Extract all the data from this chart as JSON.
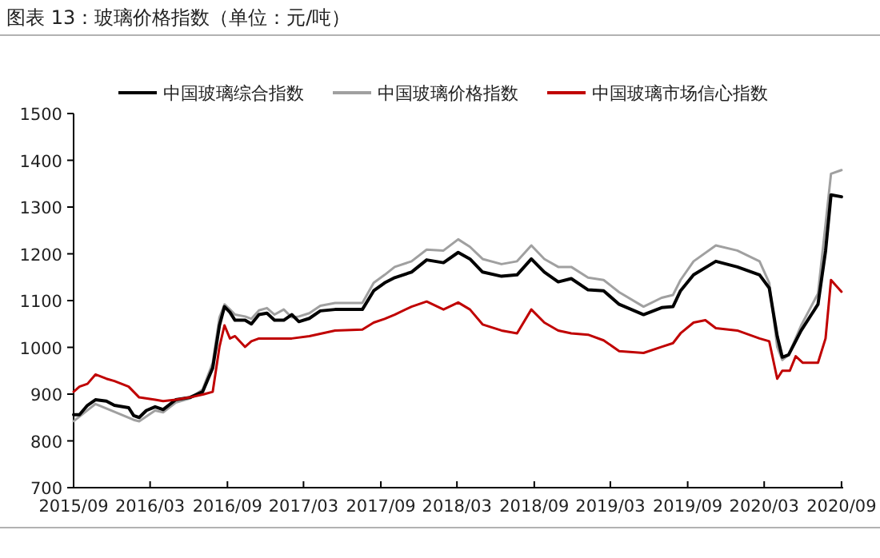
{
  "chart_data": {
    "type": "line",
    "title": "图表 13：玻璃价格指数（单位：元/吨）",
    "legend": "top",
    "xlim": [
      "2015-09-01",
      "2020-09-05"
    ],
    "ylim": [
      700,
      1500
    ],
    "xticks": [
      {
        "value": "2015-09",
        "label": "2015/09"
      },
      {
        "value": "2016-03",
        "label": "2016/03"
      },
      {
        "value": "2016-09",
        "label": "2016/09"
      },
      {
        "value": "2017-03",
        "label": "2017/03"
      },
      {
        "value": "2017-09",
        "label": "2017/09"
      },
      {
        "value": "2018-03",
        "label": "2018/03"
      },
      {
        "value": "2018-09",
        "label": "2018/09"
      },
      {
        "value": "2019-03",
        "label": "2019/03"
      },
      {
        "value": "2019-09",
        "label": "2019/09"
      },
      {
        "value": "2020-03",
        "label": "2020/03"
      },
      {
        "value": "2020-09",
        "label": "2020/09"
      }
    ],
    "yticks": [
      700,
      800,
      900,
      1000,
      1100,
      1200,
      1300,
      1400,
      1500
    ],
    "series": [
      {
        "name": "中国玻璃综合指数",
        "color": "#000000",
        "x": [
          "2015-09-01",
          "2015-09-15",
          "2015-10-04",
          "2015-10-23",
          "2015-11-18",
          "2015-12-07",
          "2016-01-10",
          "2016-01-22",
          "2016-02-04",
          "2016-02-21",
          "2016-03-13",
          "2016-04-01",
          "2016-05-01",
          "2016-06-04",
          "2016-07-04",
          "2016-07-28",
          "2016-08-13",
          "2016-08-25",
          "2016-09-07",
          "2016-09-19",
          "2016-10-13",
          "2016-10-28",
          "2016-11-15",
          "2016-12-04",
          "2016-12-22",
          "2017-01-13",
          "2017-02-01",
          "2017-02-18",
          "2017-03-15",
          "2017-04-10",
          "2017-05-15",
          "2017-06-25",
          "2017-07-19",
          "2017-08-15",
          "2017-09-10",
          "2017-10-04",
          "2017-11-13",
          "2017-12-19",
          "2018-01-28",
          "2018-03-04",
          "2018-04-01",
          "2018-05-01",
          "2018-06-15",
          "2018-07-22",
          "2018-08-25",
          "2018-09-25",
          "2018-10-28",
          "2018-11-28",
          "2019-01-07",
          "2019-02-13",
          "2019-03-22",
          "2019-05-19",
          "2019-07-01",
          "2019-07-28",
          "2019-08-15",
          "2019-09-15",
          "2019-11-07",
          "2019-12-28",
          "2020-02-19",
          "2020-03-13",
          "2020-04-01",
          "2020-04-13",
          "2020-04-28",
          "2020-05-28",
          "2020-07-07",
          "2020-07-25",
          "2020-08-07",
          "2020-09-01"
        ],
        "values": [
          856,
          856,
          876,
          888,
          885,
          876,
          871,
          854,
          850,
          865,
          873,
          867,
          888,
          893,
          905,
          956,
          1047,
          1087,
          1075,
          1058,
          1058,
          1050,
          1070,
          1073,
          1058,
          1058,
          1070,
          1055,
          1062,
          1078,
          1081,
          1081,
          1081,
          1121,
          1138,
          1149,
          1161,
          1187,
          1181,
          1203,
          1189,
          1161,
          1152,
          1155,
          1189,
          1161,
          1140,
          1147,
          1123,
          1121,
          1092,
          1070,
          1085,
          1087,
          1121,
          1155,
          1184,
          1172,
          1155,
          1127,
          1024,
          979,
          984,
          1036,
          1092,
          1206,
          1326,
          1322
        ]
      },
      {
        "name": "中国玻璃价格指数",
        "color": "#a0a0a0",
        "x": [
          "2015-09-01",
          "2015-10-23",
          "2016-01-22",
          "2016-02-04",
          "2016-03-13",
          "2016-04-01",
          "2016-05-01",
          "2016-06-04",
          "2016-07-04",
          "2016-07-28",
          "2016-08-13",
          "2016-08-25",
          "2016-09-07",
          "2016-09-19",
          "2016-10-13",
          "2016-10-28",
          "2016-11-15",
          "2016-12-04",
          "2016-12-22",
          "2017-01-13",
          "2017-02-01",
          "2017-02-18",
          "2017-03-15",
          "2017-04-10",
          "2017-05-15",
          "2017-06-25",
          "2017-07-19",
          "2017-08-15",
          "2017-09-10",
          "2017-10-04",
          "2017-11-13",
          "2017-12-19",
          "2018-01-28",
          "2018-03-04",
          "2018-04-01",
          "2018-05-01",
          "2018-06-15",
          "2018-07-22",
          "2018-08-25",
          "2018-09-25",
          "2018-10-28",
          "2018-11-28",
          "2019-01-07",
          "2019-02-13",
          "2019-03-22",
          "2019-05-19",
          "2019-07-01",
          "2019-07-28",
          "2019-08-15",
          "2019-09-15",
          "2019-11-07",
          "2019-12-28",
          "2020-02-19",
          "2020-03-13",
          "2020-04-01",
          "2020-04-13",
          "2020-04-28",
          "2020-05-28",
          "2020-07-07",
          "2020-07-25",
          "2020-08-07",
          "2020-09-01"
        ],
        "values": [
          842,
          879,
          845,
          842,
          865,
          861,
          882,
          891,
          910,
          967,
          1064,
          1092,
          1081,
          1070,
          1066,
          1061,
          1079,
          1084,
          1070,
          1081,
          1064,
          1066,
          1073,
          1089,
          1095,
          1095,
          1095,
          1138,
          1155,
          1172,
          1184,
          1209,
          1207,
          1231,
          1215,
          1189,
          1178,
          1184,
          1218,
          1189,
          1172,
          1172,
          1149,
          1144,
          1118,
          1087,
          1106,
          1112,
          1144,
          1184,
          1218,
          1207,
          1184,
          1138,
          1001,
          973,
          984,
          1047,
          1115,
          1263,
          1371,
          1379
        ]
      },
      {
        "name": "中国玻璃市场信心指数",
        "color": "#c00000",
        "x": [
          "2015-09-01",
          "2015-09-15",
          "2015-10-04",
          "2015-10-23",
          "2015-11-18",
          "2015-12-07",
          "2016-01-10",
          "2016-02-04",
          "2016-03-13",
          "2016-04-01",
          "2016-05-01",
          "2016-06-04",
          "2016-07-04",
          "2016-07-28",
          "2016-08-13",
          "2016-08-25",
          "2016-09-07",
          "2016-09-19",
          "2016-10-13",
          "2016-10-28",
          "2016-11-15",
          "2016-12-22",
          "2017-02-01",
          "2017-03-15",
          "2017-05-15",
          "2017-07-19",
          "2017-08-15",
          "2017-09-10",
          "2017-10-04",
          "2017-11-13",
          "2017-12-19",
          "2018-01-28",
          "2018-03-04",
          "2018-04-01",
          "2018-05-01",
          "2018-06-15",
          "2018-07-22",
          "2018-08-25",
          "2018-09-25",
          "2018-10-28",
          "2018-11-28",
          "2019-01-07",
          "2019-02-13",
          "2019-03-22",
          "2019-05-19",
          "2019-07-01",
          "2019-07-28",
          "2019-08-15",
          "2019-09-15",
          "2019-10-13",
          "2019-11-07",
          "2019-12-28",
          "2020-02-19",
          "2020-03-13",
          "2020-04-01",
          "2020-04-13",
          "2020-05-01",
          "2020-05-15",
          "2020-06-01",
          "2020-07-07",
          "2020-07-25",
          "2020-08-07",
          "2020-09-01"
        ],
        "values": [
          905,
          916,
          922,
          942,
          933,
          928,
          916,
          893,
          888,
          885,
          888,
          893,
          899,
          905,
          1001,
          1047,
          1019,
          1024,
          1001,
          1013,
          1019,
          1019,
          1019,
          1024,
          1036,
          1038,
          1053,
          1061,
          1070,
          1087,
          1098,
          1081,
          1096,
          1081,
          1049,
          1036,
          1030,
          1081,
          1053,
          1036,
          1030,
          1027,
          1015,
          992,
          988,
          1001,
          1009,
          1030,
          1053,
          1058,
          1041,
          1036,
          1019,
          1013,
          933,
          950,
          950,
          981,
          967,
          967,
          1019,
          1144,
          1119
        ]
      }
    ]
  }
}
